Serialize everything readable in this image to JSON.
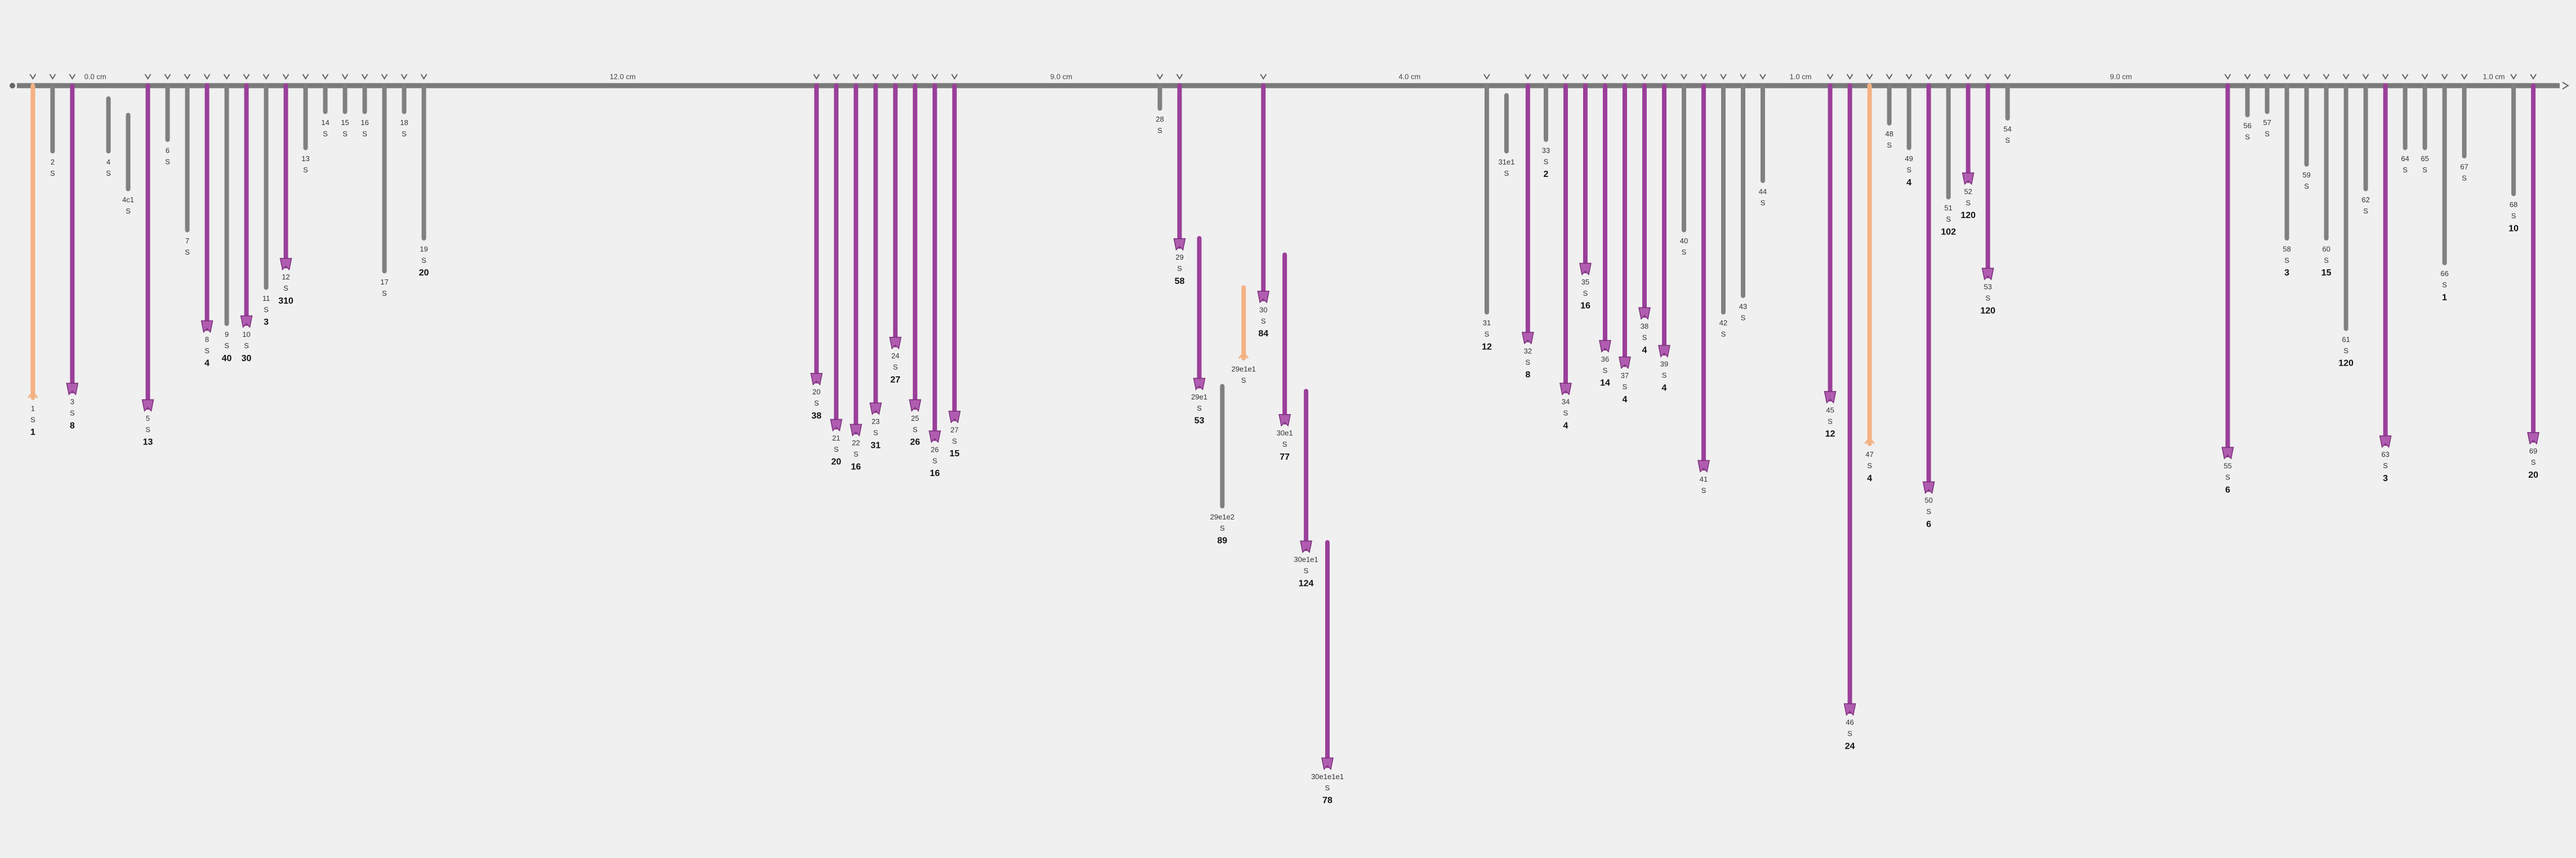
{
  "scale_labels": [
    "0.0 cm",
    "12.0 cm",
    "9.0 cm",
    "4.0 cm",
    "1.0 cm",
    "9.0 cm",
    "1.0 cm"
  ],
  "stems": [
    {
      "id": "1",
      "unit": "S",
      "count": "1",
      "color": "#f4b183"
    },
    {
      "id": "2",
      "unit": "S",
      "color": "#808080"
    },
    {
      "id": "3",
      "unit": "S",
      "count": "8",
      "color": "#9b3f9b"
    },
    {
      "id": "4",
      "unit": "S",
      "color": "#808080"
    },
    {
      "id": "4c1",
      "unit": "S",
      "color": "#808080"
    },
    {
      "id": "5",
      "unit": "S",
      "count": "13",
      "color": "#9b3f9b"
    },
    {
      "id": "6",
      "unit": "S",
      "color": "#808080"
    },
    {
      "id": "7",
      "unit": "S",
      "color": "#808080"
    },
    {
      "id": "8",
      "unit": "S",
      "count": "4",
      "color": "#9b3f9b"
    },
    {
      "id": "9",
      "unit": "S",
      "count": "40",
      "color": "#808080"
    },
    {
      "id": "10",
      "unit": "S",
      "count": "30",
      "color": "#9b3f9b"
    },
    {
      "id": "11",
      "unit": "S",
      "count": "3",
      "color": "#808080"
    },
    {
      "id": "12",
      "unit": "S",
      "count": "310",
      "color": "#9b3f9b"
    },
    {
      "id": "13",
      "unit": "S",
      "color": "#808080"
    },
    {
      "id": "14",
      "unit": "S",
      "color": "#808080"
    },
    {
      "id": "15",
      "unit": "S",
      "color": "#808080"
    },
    {
      "id": "16",
      "unit": "S",
      "color": "#808080"
    },
    {
      "id": "17",
      "unit": "S",
      "color": "#808080"
    },
    {
      "id": "18",
      "unit": "S",
      "color": "#808080"
    },
    {
      "id": "19",
      "unit": "S",
      "count": "20",
      "color": "#808080"
    },
    {
      "id": "20",
      "unit": "S",
      "count": "38",
      "color": "#9b3f9b"
    },
    {
      "id": "21",
      "unit": "S",
      "count": "20",
      "color": "#9b3f9b"
    },
    {
      "id": "22",
      "unit": "S",
      "count": "16",
      "color": "#9b3f9b"
    },
    {
      "id": "23",
      "unit": "S",
      "count": "31",
      "color": "#9b3f9b"
    },
    {
      "id": "24",
      "unit": "S",
      "count": "27",
      "color": "#9b3f9b"
    },
    {
      "id": "25",
      "unit": "S",
      "count": "26",
      "color": "#9b3f9b"
    },
    {
      "id": "26",
      "unit": "S",
      "count": "16",
      "color": "#9b3f9b"
    },
    {
      "id": "27",
      "unit": "S",
      "count": "15",
      "color": "#9b3f9b"
    },
    {
      "id": "28",
      "unit": "S",
      "color": "#808080"
    },
    {
      "id": "29",
      "unit": "S",
      "count": "58",
      "color": "#9b3f9b"
    },
    {
      "id": "29e1",
      "unit": "S",
      "count": "53",
      "color": "#9b3f9b"
    },
    {
      "id": "29e1e2",
      "unit": "S",
      "count": "89",
      "color": "#808080"
    },
    {
      "id": "29e1e1",
      "unit": "S",
      "color": "#f4b183"
    },
    {
      "id": "30",
      "unit": "S",
      "count": "84",
      "color": "#9b3f9b"
    },
    {
      "id": "30e1",
      "unit": "S",
      "count": "77",
      "color": "#9b3f9b"
    },
    {
      "id": "30e1e1",
      "unit": "S",
      "count": "124",
      "color": "#9b3f9b"
    },
    {
      "id": "30e1e1e1",
      "unit": "S",
      "count": "78",
      "color": "#9b3f9b"
    },
    {
      "id": "31",
      "unit": "S",
      "count": "12",
      "color": "#808080"
    },
    {
      "id": "31e1",
      "unit": "S",
      "color": "#808080"
    },
    {
      "id": "32",
      "unit": "S",
      "count": "8",
      "color": "#9b3f9b"
    },
    {
      "id": "33",
      "unit": "S",
      "count": "2",
      "color": "#808080"
    },
    {
      "id": "34",
      "unit": "S",
      "count": "4",
      "color": "#9b3f9b"
    },
    {
      "id": "35",
      "unit": "S",
      "count": "16",
      "color": "#9b3f9b"
    },
    {
      "id": "36",
      "unit": "S",
      "count": "14",
      "color": "#9b3f9b"
    },
    {
      "id": "37",
      "unit": "S",
      "count": "4",
      "color": "#9b3f9b"
    },
    {
      "id": "38",
      "unit": "S",
      "count": "4",
      "color": "#9b3f9b"
    },
    {
      "id": "39",
      "unit": "S",
      "count": "4",
      "color": "#9b3f9b"
    },
    {
      "id": "40",
      "unit": "S",
      "color": "#808080"
    },
    {
      "id": "41",
      "unit": "S",
      "color": "#9b3f9b"
    },
    {
      "id": "42",
      "unit": "S",
      "color": "#808080"
    },
    {
      "id": "43",
      "unit": "S",
      "color": "#808080"
    },
    {
      "id": "44",
      "unit": "S",
      "color": "#808080"
    },
    {
      "id": "45",
      "unit": "S",
      "count": "12",
      "color": "#9b3f9b"
    },
    {
      "id": "46",
      "unit": "S",
      "count": "24",
      "color": "#9b3f9b"
    },
    {
      "id": "47",
      "unit": "S",
      "count": "4",
      "color": "#f4b183"
    },
    {
      "id": "48",
      "unit": "S",
      "color": "#808080"
    },
    {
      "id": "49",
      "unit": "S",
      "count": "4",
      "color": "#808080"
    },
    {
      "id": "50",
      "unit": "S",
      "count": "6",
      "color": "#9b3f9b"
    },
    {
      "id": "51",
      "unit": "S",
      "count": "102",
      "color": "#808080"
    },
    {
      "id": "52",
      "unit": "S",
      "count": "120",
      "color": "#9b3f9b"
    },
    {
      "id": "53",
      "unit": "S",
      "count": "120",
      "color": "#9b3f9b"
    },
    {
      "id": "54",
      "unit": "S",
      "color": "#808080"
    },
    {
      "id": "55",
      "unit": "S",
      "count": "6",
      "color": "#9b3f9b"
    },
    {
      "id": "56",
      "unit": "S",
      "color": "#808080"
    },
    {
      "id": "57",
      "unit": "S",
      "color": "#808080"
    },
    {
      "id": "58",
      "unit": "S",
      "count": "3",
      "color": "#808080"
    },
    {
      "id": "59",
      "unit": "S",
      "color": "#808080"
    },
    {
      "id": "60",
      "unit": "S",
      "count": "15",
      "color": "#808080"
    },
    {
      "id": "61",
      "unit": "S",
      "count": "120",
      "color": "#808080"
    },
    {
      "id": "62",
      "unit": "S",
      "color": "#808080"
    },
    {
      "id": "63",
      "unit": "S",
      "count": "3",
      "color": "#9b3f9b"
    },
    {
      "id": "64",
      "unit": "S",
      "color": "#808080"
    },
    {
      "id": "65",
      "unit": "S",
      "color": "#808080"
    },
    {
      "id": "66",
      "unit": "S",
      "count": "1",
      "color": "#808080"
    },
    {
      "id": "67",
      "unit": "S",
      "color": "#808080"
    },
    {
      "id": "68",
      "unit": "S",
      "count": "10",
      "color": "#808080"
    },
    {
      "id": "69",
      "unit": "S",
      "count": "20",
      "color": "#9b3f9b"
    }
  ]
}
